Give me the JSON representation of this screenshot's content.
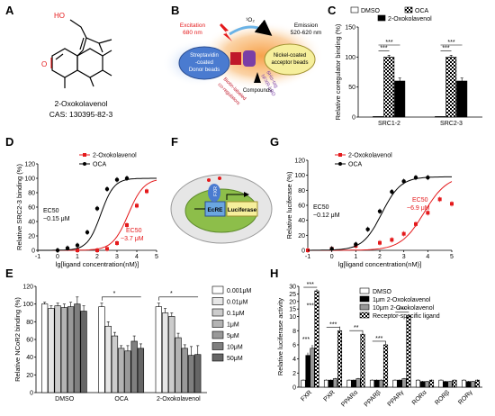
{
  "panels": {
    "A": "A",
    "B": "B",
    "C": "C",
    "D": "D",
    "E": "E",
    "F": "F",
    "G": "G",
    "H": "H"
  },
  "panel_a": {
    "label_ho": "HO",
    "label_o": "O",
    "compound": "2-Oxokolavenol",
    "cas": "CAS: 130395-82-3"
  },
  "panel_b": {
    "excitation": "Excitation",
    "excitation_nm": "680 nm",
    "singlet_oxygen": "¹O₂",
    "emission": "Emission",
    "emission_nm": "520-620 nm",
    "donor_lines": [
      "Streptavidin",
      "-coated",
      "Donor beads"
    ],
    "acceptor_lines": [
      "Nickel-coated",
      "acceptor beads"
    ],
    "coregulator_lines": [
      "Biotin-labeled",
      "co-regulators"
    ],
    "tag_lines": [
      "6His-tag",
      "hFXR-LBD"
    ],
    "compounds": "Compounds"
  },
  "panel_f": {
    "fxr": "FXR",
    "ecre": "EcRE",
    "luciferase": "Luciferase"
  },
  "chart_data": [
    {
      "id": "C",
      "type": "bar",
      "ylabel": "Relative coregulator binding (%)",
      "categories": [
        "SRC1-2",
        "SRC2-3"
      ],
      "ylim": [
        0,
        150
      ],
      "yticks": [
        0,
        50,
        100,
        150
      ],
      "series": [
        {
          "name": "DMSO",
          "values": [
            1,
            1
          ],
          "errors": [
            0,
            0
          ],
          "pattern": "white"
        },
        {
          "name": "OCA",
          "values": [
            100,
            100
          ],
          "errors": [
            3,
            3
          ],
          "pattern": "checker"
        },
        {
          "name": "2-Oxokolavenol",
          "values": [
            60,
            60
          ],
          "errors": [
            5,
            5
          ],
          "pattern": "black"
        }
      ],
      "significance": [
        "***",
        "***",
        "***",
        "***"
      ]
    },
    {
      "id": "D",
      "type": "line",
      "ylabel": "Relative SRC2-3 binding (%)",
      "xlabel": "lg[ligand concentration(nM)]",
      "xlim": [
        -1,
        5
      ],
      "ylim": [
        0,
        120
      ],
      "xticks": [
        -1,
        0,
        1,
        2,
        3,
        4,
        5
      ],
      "yticks": [
        0,
        20,
        40,
        60,
        80,
        100,
        120
      ],
      "series": [
        {
          "name": "2-Oxokolavenol",
          "color": "#e41a1c",
          "marker": "square",
          "x": [
            1,
            2,
            2.5,
            3,
            3.5,
            4,
            4.5
          ],
          "y": [
            0,
            0,
            2,
            10,
            35,
            62,
            82
          ],
          "fit": {
            "ec50_log": 3.57,
            "top": 100,
            "bottom": 0,
            "hill": 1.1
          }
        },
        {
          "name": "OCA",
          "color": "#000000",
          "marker": "circle",
          "x": [
            0,
            0.5,
            1,
            1.5,
            2,
            2.5,
            3,
            3.5
          ],
          "y": [
            0,
            3,
            7,
            25,
            58,
            85,
            98,
            100
          ],
          "fit": {
            "ec50_log": 2.18,
            "top": 100,
            "bottom": 0,
            "hill": 1.3
          }
        }
      ],
      "annotations": [
        {
          "lines": [
            "EC50",
            "~0.15 μM"
          ],
          "color": "#000000"
        },
        {
          "lines": [
            "EC50",
            "~3.7 μM"
          ],
          "color": "#e41a1c"
        }
      ]
    },
    {
      "id": "E",
      "type": "bar",
      "ylabel": "Relative NCoR2 binding (%)",
      "categories": [
        "DMSO",
        "OCA",
        "2-Oxokolavenol"
      ],
      "ylim": [
        0,
        120
      ],
      "yticks": [
        0,
        20,
        40,
        60,
        80,
        100,
        120
      ],
      "series": [
        {
          "name": "0.001μM",
          "color": "#ffffff",
          "values": [
            100,
            97,
            97
          ],
          "errors": [
            2,
            4,
            4
          ]
        },
        {
          "name": "0.01μM",
          "color": "#e6e6e6",
          "values": [
            95,
            75,
            90
          ],
          "errors": [
            3,
            5,
            5
          ]
        },
        {
          "name": "0.1μM",
          "color": "#cccccc",
          "values": [
            98,
            64,
            86
          ],
          "errors": [
            3,
            4,
            4
          ]
        },
        {
          "name": "1μM",
          "color": "#b3b3b3",
          "values": [
            96,
            50,
            62
          ],
          "errors": [
            4,
            3,
            5
          ]
        },
        {
          "name": "5μM",
          "color": "#999999",
          "values": [
            97,
            47,
            50
          ],
          "errors": [
            5,
            6,
            4
          ]
        },
        {
          "name": "10μM",
          "color": "#7f7f7f",
          "values": [
            100,
            58,
            42
          ],
          "errors": [
            8,
            6,
            10
          ]
        },
        {
          "name": "50μM",
          "color": "#666666",
          "values": [
            92,
            50,
            43
          ],
          "errors": [
            6,
            5,
            10
          ]
        }
      ],
      "significance": [
        "*",
        "*"
      ]
    },
    {
      "id": "G",
      "type": "line",
      "ylabel": "Relative luciferase (%)",
      "xlabel": "lg[ligand concentration(nM)]",
      "xlim": [
        -1,
        5
      ],
      "ylim": [
        0,
        120
      ],
      "xticks": [
        -1,
        0,
        1,
        2,
        3,
        4,
        5
      ],
      "yticks": [
        0,
        20,
        40,
        60,
        80,
        100,
        120
      ],
      "series": [
        {
          "name": "2-Oxokolavenol",
          "color": "#e41a1c",
          "marker": "square",
          "x": [
            -1,
            0,
            1,
            2,
            2.5,
            3,
            3.5,
            4,
            4.5,
            5
          ],
          "y": [
            0,
            2,
            6,
            10,
            14,
            22,
            35,
            50,
            68,
            62
          ],
          "fit": {
            "ec50_log": 3.84,
            "top": 100,
            "bottom": 0,
            "hill": 0.9
          }
        },
        {
          "name": "OCA",
          "color": "#000000",
          "marker": "circle",
          "x": [
            0,
            1,
            1.5,
            2,
            2.5,
            3,
            3.5,
            4
          ],
          "y": [
            2,
            8,
            28,
            52,
            78,
            92,
            97,
            97
          ],
          "fit": {
            "ec50_log": 2.08,
            "top": 98,
            "bottom": 0,
            "hill": 1.1
          }
        }
      ],
      "annotations": [
        {
          "lines": [
            "EC50",
            "~0.12 μM"
          ],
          "color": "#000000"
        },
        {
          "lines": [
            "EC50",
            "~6.9 μM"
          ],
          "color": "#e41a1c"
        }
      ]
    },
    {
      "id": "H",
      "type": "bar",
      "ylabel": "Relative luciferase activity",
      "categories": [
        "FXR",
        "PXR",
        "PPARα",
        "PPARβ",
        "PPARγ",
        "RORα",
        "RORβ",
        "RORγ"
      ],
      "ylim": [
        0,
        30
      ],
      "yticks": [
        0,
        2,
        4,
        6,
        8,
        10,
        15,
        20,
        25,
        30
      ],
      "series": [
        {
          "name": "DMSO",
          "pattern": "white",
          "values": [
            1,
            1,
            1,
            1,
            1,
            1,
            1,
            1
          ],
          "errors": [
            0.1,
            0.1,
            0.1,
            0.1,
            0.1,
            0.1,
            0.1,
            0.1
          ]
        },
        {
          "name": "1μm 2-Oxokolavenol",
          "pattern": "black",
          "values": [
            4.5,
            1,
            1,
            1,
            1,
            0.8,
            0.8,
            0.8
          ],
          "errors": [
            0.4,
            0.1,
            0.1,
            0.1,
            0.1,
            0.1,
            0.1,
            0.1
          ]
        },
        {
          "name": "10μm 2-Oxokolavenol",
          "pattern": "gray",
          "values": [
            5.5,
            1.2,
            1.2,
            1,
            1.2,
            0.8,
            0.8,
            0.8
          ],
          "errors": [
            0.5,
            0.1,
            0.1,
            0.1,
            0.1,
            0.1,
            0.1,
            0.1
          ]
        },
        {
          "name": "Receptor-specific ligand",
          "pattern": "checker",
          "values": [
            27,
            8,
            7.5,
            6,
            10.5,
            1,
            1,
            1
          ],
          "errors": [
            1.2,
            0.6,
            0.5,
            0.5,
            0.6,
            0.1,
            0.1,
            0.1
          ]
        }
      ],
      "significance": [
        "***",
        "***",
        "**",
        "***",
        "***",
        "***",
        "***"
      ]
    }
  ]
}
